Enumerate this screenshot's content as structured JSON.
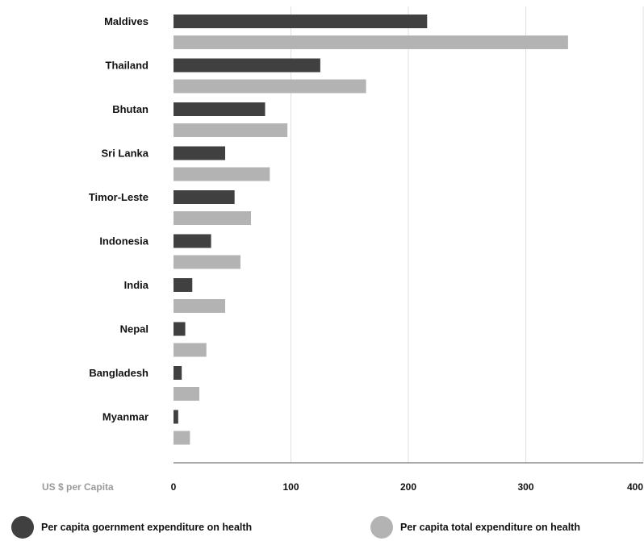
{
  "chart_data": {
    "type": "bar",
    "orientation": "horizontal",
    "categories": [
      "Maldives",
      "Thailand",
      "Bhutan",
      "Sri Lanka",
      "Timor-Leste",
      "Indonesia",
      "India",
      "Nepal",
      "Bangladesh",
      "Myanmar"
    ],
    "series": [
      {
        "name": "Per capita goernment expenditure on health",
        "color": "#404040",
        "values": [
          216,
          125,
          78,
          44,
          52,
          32,
          16,
          10,
          7,
          4
        ]
      },
      {
        "name": "Per capita total expenditure on health",
        "color": "#b3b3b3",
        "values": [
          336,
          164,
          97,
          82,
          66,
          57,
          44,
          28,
          22,
          14
        ]
      }
    ],
    "xlabel": "US $ per Capita",
    "xlim": [
      0,
      400
    ],
    "xticks": [
      "0",
      "100",
      "200",
      "300",
      "400"
    ],
    "grid": true,
    "legend_position": "bottom"
  }
}
